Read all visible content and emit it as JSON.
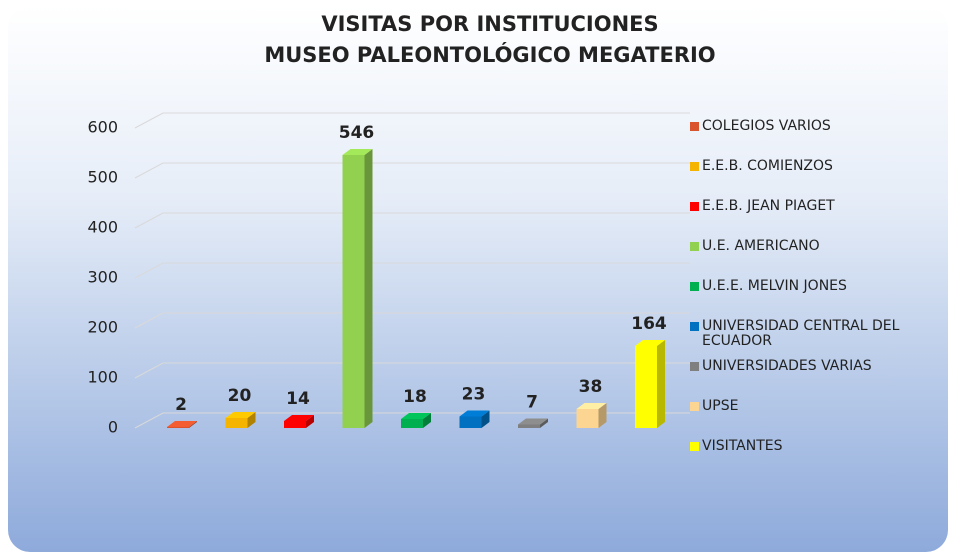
{
  "chart_data": {
    "type": "bar3d",
    "title": "VISITAS POR INSTITUCIONES",
    "subtitle": "MUSEO PALEONTOLÓGICO MEGATERIO",
    "categories": [
      "COLEGIOS VARIOS",
      "E.E.B. COMIENZOS",
      "E.E.B. JEAN PIAGET",
      "U.E. AMERICANO",
      "U.E.E. MELVIN JONES",
      "UNIVERSIDAD CENTRAL DEL ECUADOR",
      "UNIVERSIDADES VARIAS",
      "UPSE",
      "VISITANTES"
    ],
    "values": [
      2,
      20,
      14,
      546,
      18,
      23,
      7,
      38,
      164
    ],
    "colors": [
      "#d9532c",
      "#f5b400",
      "#ff0000",
      "#92d050",
      "#00b050",
      "#0070c0",
      "#7f7f7f",
      "#fcd592",
      "#ffff00"
    ],
    "ylim": [
      0,
      600
    ],
    "yticks": [
      0,
      100,
      200,
      300,
      400,
      500,
      600
    ],
    "grid": true,
    "legend": "right"
  }
}
